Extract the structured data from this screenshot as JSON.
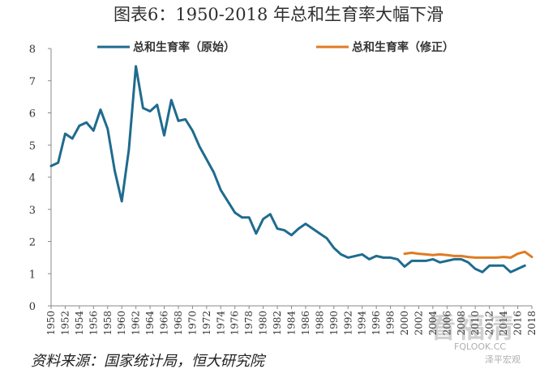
{
  "colors": {
    "original": "#1f6b8e",
    "revised": "#e07b22",
    "axis": "#888888",
    "text": "#333333"
  },
  "watermark": {
    "main": "看福清",
    "url": "FQLOOK.CC",
    "sub": "泽平宏观"
  },
  "source_note": "资料来源：国家统计局，恒大研究院",
  "chart_data": {
    "type": "line",
    "title": "图表6：1950-2018 年总和生育率大幅下滑",
    "xlabel": "",
    "ylabel": "",
    "xlim": [
      1950,
      2018
    ],
    "ylim": [
      0,
      8
    ],
    "yticks": [
      0,
      1,
      2,
      3,
      4,
      5,
      6,
      7,
      8
    ],
    "xticks": [
      1950,
      1952,
      1954,
      1956,
      1958,
      1960,
      1962,
      1964,
      1966,
      1968,
      1970,
      1972,
      1974,
      1976,
      1978,
      1980,
      1982,
      1984,
      1986,
      1988,
      1990,
      1992,
      1994,
      1996,
      1998,
      2000,
      2002,
      2004,
      2006,
      2008,
      2010,
      2012,
      2014,
      2016,
      2018
    ],
    "legend_position": "top",
    "series": [
      {
        "name": "总和生育率（原始）",
        "color": "#1f6b8e",
        "x": [
          1950,
          1951,
          1952,
          1953,
          1954,
          1955,
          1956,
          1957,
          1958,
          1959,
          1960,
          1961,
          1962,
          1963,
          1964,
          1965,
          1966,
          1967,
          1968,
          1969,
          1970,
          1971,
          1972,
          1973,
          1974,
          1975,
          1976,
          1977,
          1978,
          1979,
          1980,
          1981,
          1982,
          1983,
          1984,
          1985,
          1986,
          1987,
          1988,
          1989,
          1990,
          1991,
          1992,
          1993,
          1994,
          1995,
          1996,
          1997,
          1998,
          1999,
          2000,
          2001,
          2002,
          2003,
          2004,
          2005,
          2006,
          2007,
          2008,
          2009,
          2010,
          2011,
          2012,
          2013,
          2014,
          2015,
          2016,
          2017
        ],
        "values": [
          4.35,
          4.45,
          5.35,
          5.2,
          5.6,
          5.7,
          5.45,
          6.1,
          5.5,
          4.2,
          3.25,
          4.85,
          7.45,
          6.15,
          6.05,
          6.25,
          5.3,
          6.4,
          5.75,
          5.8,
          5.45,
          4.95,
          4.55,
          4.15,
          3.6,
          3.25,
          2.9,
          2.75,
          2.75,
          2.25,
          2.7,
          2.85,
          2.4,
          2.35,
          2.2,
          2.4,
          2.55,
          2.4,
          2.25,
          2.1,
          1.8,
          1.6,
          1.5,
          1.55,
          1.6,
          1.45,
          1.55,
          1.5,
          1.5,
          1.45,
          1.22,
          1.4,
          1.4,
          1.4,
          1.45,
          1.35,
          1.4,
          1.45,
          1.45,
          1.35,
          1.15,
          1.05,
          1.25,
          1.25,
          1.25,
          1.05,
          1.15,
          1.25
        ]
      },
      {
        "name": "总和生育率（修正）",
        "color": "#e07b22",
        "x": [
          2000,
          2001,
          2002,
          2003,
          2004,
          2005,
          2006,
          2007,
          2008,
          2009,
          2010,
          2011,
          2012,
          2013,
          2014,
          2015,
          2016,
          2017,
          2018
        ],
        "values": [
          1.62,
          1.65,
          1.62,
          1.6,
          1.58,
          1.6,
          1.58,
          1.55,
          1.55,
          1.52,
          1.5,
          1.5,
          1.5,
          1.5,
          1.52,
          1.5,
          1.62,
          1.68,
          1.52
        ]
      }
    ]
  }
}
